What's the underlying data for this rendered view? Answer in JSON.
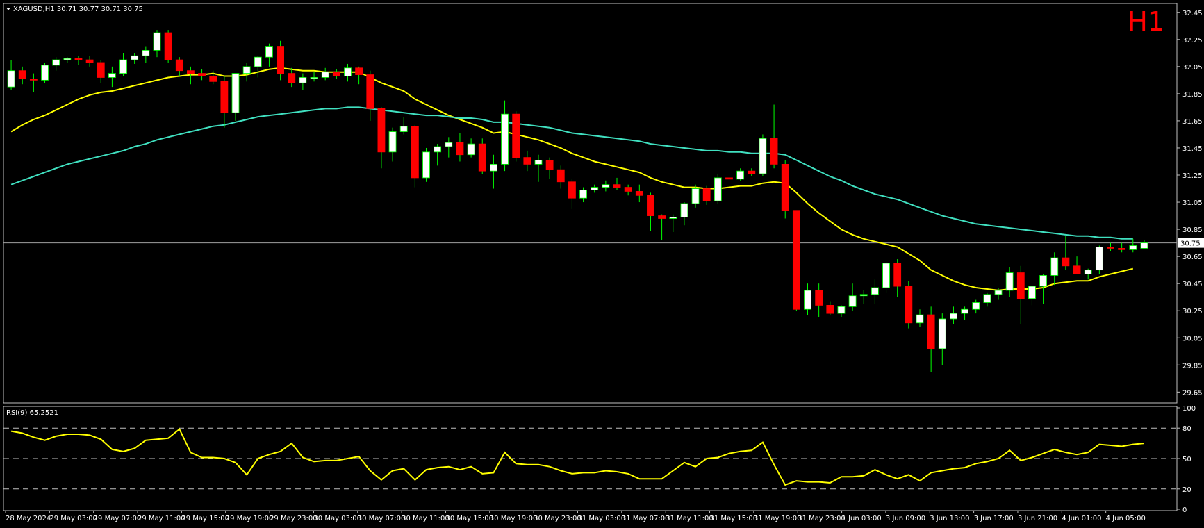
{
  "header": {
    "symbol_line": "XAGUSD,H1  30.71 30.77 30.71 30.75",
    "timeframe_badge": "H1"
  },
  "rsi": {
    "label": "RSI(9) 65.2521",
    "levels": [
      "100",
      "80",
      "50",
      "20",
      "0"
    ]
  },
  "colors": {
    "background": "#000000",
    "frame": "#c0c0c0",
    "bull_candle": "#ffffff",
    "bear_candle": "#ff0000",
    "wick": "#00ff00",
    "ma_fast": "#ffff00",
    "ma_slow": "#40e0c0",
    "rsi_line": "#ffff00",
    "price_line": "#a0a0a0",
    "badge": "#ff0000",
    "axis_text": "#ffffff"
  },
  "chart_data": [
    {
      "type": "candlestick",
      "title": "XAGUSD,H1",
      "ylim": [
        29.58,
        32.5
      ],
      "y_ticks": [
        "32.45",
        "32.25",
        "32.05",
        "31.85",
        "31.65",
        "31.45",
        "31.25",
        "31.05",
        "30.85",
        "30.65",
        "30.45",
        "30.25",
        "30.05",
        "29.85",
        "29.65"
      ],
      "current_price_label": "30.75",
      "x_tick_labels": [
        "28 May 2024",
        "29 May 03:00",
        "29 May 07:00",
        "29 May 11:00",
        "29 May 15:00",
        "29 May 19:00",
        "29 May 23:00",
        "30 May 03:00",
        "30 May 07:00",
        "30 May 11:00",
        "30 May 15:00",
        "30 May 19:00",
        "30 May 23:00",
        "31 May 03:00",
        "31 May 07:00",
        "31 May 11:00",
        "31 May 15:00",
        "31 May 19:00",
        "31 May 23:00",
        "1 Jun 03:00",
        "3 Jun 09:00",
        "3 Jun 13:00",
        "3 Jun 17:00",
        "3 Jun 21:00",
        "4 Jun 01:00",
        "4 Jun 05:00"
      ],
      "candles": [
        [
          31.9,
          32.1,
          31.88,
          32.02
        ],
        [
          32.02,
          32.05,
          31.92,
          31.96
        ],
        [
          31.96,
          32.0,
          31.86,
          31.95
        ],
        [
          31.95,
          32.08,
          31.93,
          32.06
        ],
        [
          32.06,
          32.12,
          32.02,
          32.1
        ],
        [
          32.1,
          32.12,
          32.08,
          32.11
        ],
        [
          32.11,
          32.13,
          32.06,
          32.1
        ],
        [
          32.1,
          32.13,
          32.05,
          32.08
        ],
        [
          32.08,
          32.1,
          31.93,
          31.97
        ],
        [
          31.97,
          32.05,
          31.9,
          32.0
        ],
        [
          32.0,
          32.15,
          31.98,
          32.1
        ],
        [
          32.1,
          32.15,
          32.07,
          32.13
        ],
        [
          32.13,
          32.2,
          32.08,
          32.17
        ],
        [
          32.17,
          32.32,
          32.12,
          32.3
        ],
        [
          32.3,
          32.32,
          32.08,
          32.1
        ],
        [
          32.1,
          32.12,
          31.98,
          32.02
        ],
        [
          32.02,
          32.05,
          31.92,
          32.0
        ],
        [
          32.0,
          32.03,
          31.95,
          31.98
        ],
        [
          31.98,
          32.02,
          31.92,
          31.94
        ],
        [
          31.94,
          31.98,
          31.6,
          31.71
        ],
        [
          31.71,
          32.0,
          31.65,
          32.0
        ],
        [
          32.0,
          32.08,
          31.94,
          32.05
        ],
        [
          32.05,
          32.13,
          31.97,
          32.12
        ],
        [
          32.12,
          32.22,
          32.05,
          32.2
        ],
        [
          32.2,
          32.24,
          31.95,
          32.0
        ],
        [
          32.0,
          32.04,
          31.9,
          31.93
        ],
        [
          31.93,
          32.0,
          31.88,
          31.97
        ],
        [
          31.97,
          32.01,
          31.94,
          31.97
        ],
        [
          31.97,
          32.04,
          31.95,
          32.01
        ],
        [
          32.01,
          32.03,
          31.96,
          31.98
        ],
        [
          31.98,
          32.07,
          31.94,
          32.04
        ],
        [
          32.04,
          32.05,
          31.92,
          31.99
        ],
        [
          31.99,
          32.02,
          31.65,
          31.74
        ],
        [
          31.74,
          31.75,
          31.3,
          31.42
        ],
        [
          31.42,
          31.6,
          31.35,
          31.57
        ],
        [
          31.57,
          31.68,
          31.55,
          31.61
        ],
        [
          31.61,
          31.62,
          31.16,
          31.23
        ],
        [
          31.23,
          31.45,
          31.2,
          31.42
        ],
        [
          31.42,
          31.48,
          31.32,
          31.46
        ],
        [
          31.46,
          31.53,
          31.38,
          31.49
        ],
        [
          31.49,
          31.56,
          31.35,
          31.4
        ],
        [
          31.4,
          31.52,
          31.38,
          31.48
        ],
        [
          31.48,
          31.52,
          31.26,
          31.28
        ],
        [
          31.28,
          31.4,
          31.15,
          31.33
        ],
        [
          31.33,
          31.8,
          31.28,
          31.7
        ],
        [
          31.7,
          31.72,
          31.35,
          31.38
        ],
        [
          31.38,
          31.43,
          31.28,
          31.33
        ],
        [
          31.33,
          31.4,
          31.2,
          31.36
        ],
        [
          31.36,
          31.38,
          31.22,
          31.29
        ],
        [
          31.29,
          31.32,
          31.15,
          31.2
        ],
        [
          31.2,
          31.22,
          31.0,
          31.08
        ],
        [
          31.08,
          31.16,
          31.05,
          31.14
        ],
        [
          31.14,
          31.18,
          31.12,
          31.16
        ],
        [
          31.16,
          31.21,
          31.13,
          31.18
        ],
        [
          31.18,
          31.23,
          31.14,
          31.16
        ],
        [
          31.16,
          31.18,
          31.1,
          31.13
        ],
        [
          31.13,
          31.18,
          31.05,
          31.1
        ],
        [
          31.1,
          31.12,
          30.84,
          30.95
        ],
        [
          30.95,
          30.96,
          30.77,
          30.93
        ],
        [
          30.93,
          30.96,
          30.83,
          30.94
        ],
        [
          30.94,
          31.05,
          30.88,
          31.04
        ],
        [
          31.04,
          31.18,
          31.01,
          31.15
        ],
        [
          31.15,
          31.17,
          31.03,
          31.06
        ],
        [
          31.06,
          31.26,
          31.04,
          31.23
        ],
        [
          31.23,
          31.24,
          31.18,
          31.22
        ],
        [
          31.22,
          31.3,
          31.21,
          31.28
        ],
        [
          31.28,
          31.3,
          31.24,
          31.26
        ],
        [
          31.26,
          31.55,
          31.24,
          31.52
        ],
        [
          31.52,
          31.77,
          31.3,
          31.33
        ],
        [
          31.33,
          31.36,
          30.93,
          30.99
        ],
        [
          30.99,
          30.99,
          30.25,
          30.26
        ],
        [
          30.26,
          30.45,
          30.22,
          30.4
        ],
        [
          30.4,
          30.45,
          30.2,
          30.29
        ],
        [
          30.29,
          30.32,
          30.22,
          30.23
        ],
        [
          30.23,
          30.29,
          30.2,
          30.28
        ],
        [
          30.28,
          30.45,
          30.25,
          30.36
        ],
        [
          30.36,
          30.4,
          30.3,
          30.37
        ],
        [
          30.37,
          30.48,
          30.3,
          30.42
        ],
        [
          30.42,
          30.61,
          30.38,
          30.6
        ],
        [
          30.6,
          30.63,
          30.35,
          30.43
        ],
        [
          30.43,
          30.47,
          30.12,
          30.16
        ],
        [
          30.16,
          30.26,
          30.13,
          30.22
        ],
        [
          30.22,
          30.28,
          29.8,
          29.97
        ],
        [
          29.97,
          30.23,
          29.85,
          30.19
        ],
        [
          30.19,
          30.28,
          30.15,
          30.23
        ],
        [
          30.23,
          30.28,
          30.18,
          30.26
        ],
        [
          30.26,
          30.33,
          30.23,
          30.31
        ],
        [
          30.31,
          30.38,
          30.28,
          30.37
        ],
        [
          30.37,
          30.42,
          30.33,
          30.4
        ],
        [
          30.4,
          30.57,
          30.35,
          30.53
        ],
        [
          30.53,
          30.58,
          30.15,
          30.34
        ],
        [
          30.34,
          30.43,
          30.29,
          30.43
        ],
        [
          30.43,
          30.52,
          30.3,
          30.51
        ],
        [
          30.51,
          30.68,
          30.44,
          30.64
        ],
        [
          30.64,
          30.8,
          30.55,
          30.58
        ],
        [
          30.58,
          30.65,
          30.53,
          30.52
        ],
        [
          30.52,
          30.56,
          30.48,
          30.55
        ],
        [
          30.55,
          30.73,
          30.52,
          30.72
        ],
        [
          30.72,
          30.75,
          30.69,
          30.71
        ],
        [
          30.71,
          30.75,
          30.68,
          30.7
        ],
        [
          30.7,
          30.78,
          30.68,
          30.73
        ],
        [
          30.71,
          30.77,
          30.71,
          30.75
        ]
      ],
      "series": [
        {
          "name": "",
          "values": [
            31.57,
            31.62,
            31.66,
            31.69,
            31.73,
            31.77,
            31.81,
            31.84,
            31.86,
            31.87,
            31.89,
            31.91,
            31.93,
            31.95,
            31.97,
            31.98,
            31.99,
            31.99,
            32.0,
            31.98,
            31.98,
            31.99,
            32.01,
            32.03,
            32.04,
            32.03,
            32.02,
            32.02,
            32.01,
            32.01,
            32.01,
            32.01,
            31.97,
            31.93,
            31.9,
            31.87,
            31.81,
            31.77,
            31.73,
            31.69,
            31.66,
            31.63,
            31.6,
            31.56,
            31.57,
            31.55,
            31.53,
            31.51,
            31.48,
            31.45,
            31.41,
            31.38,
            31.35,
            31.33,
            31.31,
            31.29,
            31.27,
            31.23,
            31.2,
            31.18,
            31.16,
            31.16,
            31.15,
            31.15,
            31.16,
            31.17,
            31.17,
            31.19,
            31.2,
            31.19,
            31.12,
            31.04,
            30.97,
            30.91,
            30.85,
            30.81,
            30.78,
            30.76,
            30.74,
            30.72,
            30.67,
            30.62,
            30.55,
            30.51,
            30.47,
            30.44,
            30.42,
            30.41,
            30.4,
            30.41,
            30.41,
            30.41,
            30.42,
            30.45,
            30.46,
            30.47,
            30.47,
            30.5,
            30.52,
            30.54,
            30.56
          ]
        },
        {
          "name": "",
          "values": [
            31.18,
            31.21,
            31.24,
            31.27,
            31.3,
            31.33,
            31.35,
            31.37,
            31.39,
            31.41,
            31.43,
            31.46,
            31.48,
            31.51,
            31.53,
            31.55,
            31.57,
            31.59,
            31.61,
            31.62,
            31.64,
            31.66,
            31.68,
            31.69,
            31.7,
            31.71,
            31.72,
            31.73,
            31.74,
            31.74,
            31.75,
            31.75,
            31.74,
            31.73,
            31.72,
            31.71,
            31.7,
            31.69,
            31.69,
            31.68,
            31.67,
            31.67,
            31.66,
            31.64,
            31.64,
            31.63,
            31.62,
            31.61,
            31.6,
            31.58,
            31.56,
            31.55,
            31.54,
            31.53,
            31.52,
            31.51,
            31.5,
            31.48,
            31.47,
            31.46,
            31.45,
            31.44,
            31.43,
            31.43,
            31.42,
            31.42,
            31.41,
            31.41,
            31.41,
            31.4,
            31.36,
            31.32,
            31.28,
            31.24,
            31.21,
            31.17,
            31.14,
            31.11,
            31.09,
            31.07,
            31.04,
            31.01,
            30.98,
            30.95,
            30.93,
            30.91,
            30.89,
            30.88,
            30.87,
            30.86,
            30.85,
            30.84,
            30.83,
            30.82,
            30.81,
            30.8,
            30.8,
            30.79,
            30.79,
            30.78,
            30.78
          ]
        }
      ]
    },
    {
      "type": "line",
      "title": "RSI(9) 65.2521",
      "ylim": [
        0,
        100
      ],
      "y_ticks": [
        100,
        80,
        50,
        20,
        0
      ],
      "series": [
        {
          "name": "",
          "values": [
            77,
            75,
            71,
            68,
            72,
            74,
            74,
            73,
            69,
            59,
            57,
            60,
            68,
            69,
            70,
            79,
            56,
            51,
            51,
            50,
            46,
            34,
            50,
            54,
            57,
            65,
            51,
            47,
            48,
            48,
            50,
            52,
            38,
            29,
            38,
            40,
            29,
            39,
            41,
            42,
            39,
            42,
            35,
            36,
            56,
            45,
            44,
            44,
            42,
            38,
            35,
            36,
            36,
            38,
            37,
            35,
            30,
            30,
            30,
            38,
            46,
            42,
            50,
            51,
            55,
            57,
            58,
            66,
            44,
            24,
            28,
            27,
            27,
            26,
            32,
            32,
            33,
            39,
            34,
            30,
            34,
            28,
            36,
            38,
            40,
            41,
            45,
            47,
            50,
            58,
            48,
            51,
            55,
            59,
            56,
            54,
            56,
            64,
            63,
            62,
            64,
            65
          ]
        }
      ]
    }
  ]
}
